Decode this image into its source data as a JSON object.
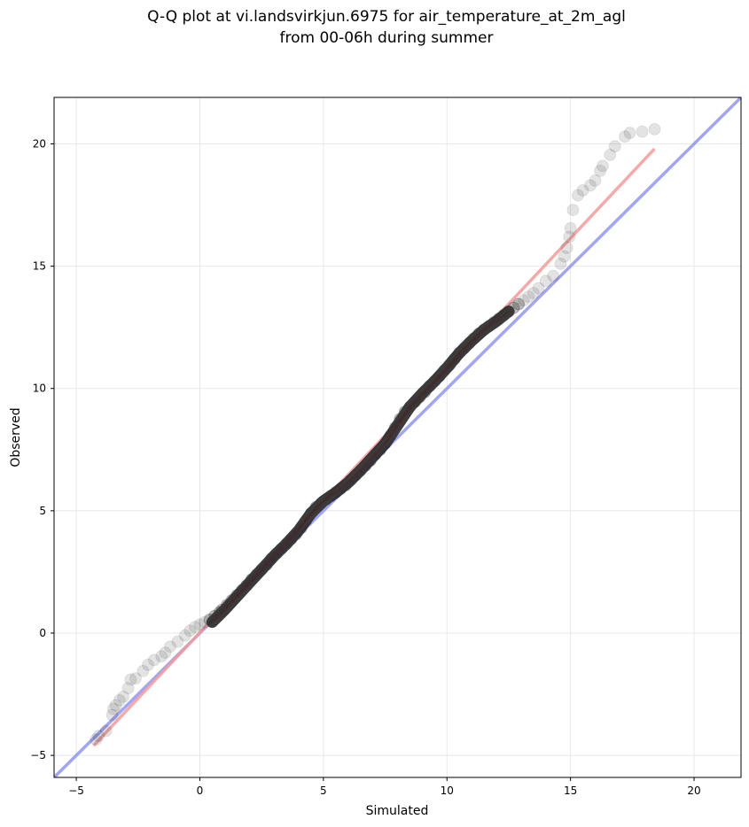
{
  "chart_data": {
    "type": "scatter",
    "title_line1": "Q-Q plot at vi.landsvirkjun.6975 for air_temperature_at_2m_agl",
    "title_line2": "from 00-06h during summer",
    "xlabel": "Simulated",
    "ylabel": "Observed",
    "xlim": [
      -5.9,
      21.9
    ],
    "ylim": [
      -5.9,
      21.9
    ],
    "xticks": [
      -5,
      0,
      5,
      10,
      15,
      20
    ],
    "yticks": [
      -5,
      0,
      5,
      10,
      15,
      20
    ],
    "grid": true,
    "colors": {
      "points": "#3a3a3a",
      "identity_line": "#8a8ff0",
      "fit_line": "#f39a9a",
      "grid": "#e8e8e8"
    },
    "identity_line": {
      "from": [
        -5.9,
        -5.9
      ],
      "to": [
        21.9,
        21.9
      ]
    },
    "fit_line": {
      "from": [
        -4.3,
        -4.6
      ],
      "to": [
        18.4,
        19.8
      ]
    },
    "bulk_quantiles": [
      [
        0.5,
        0.45
      ],
      [
        1.0,
        0.95
      ],
      [
        1.5,
        1.5
      ],
      [
        2.0,
        2.05
      ],
      [
        2.5,
        2.6
      ],
      [
        3.0,
        3.15
      ],
      [
        3.5,
        3.65
      ],
      [
        4.0,
        4.2
      ],
      [
        4.5,
        4.9
      ],
      [
        5.0,
        5.4
      ],
      [
        5.5,
        5.75
      ],
      [
        6.0,
        6.15
      ],
      [
        6.5,
        6.65
      ],
      [
        7.0,
        7.2
      ],
      [
        7.5,
        7.75
      ],
      [
        8.0,
        8.5
      ],
      [
        8.5,
        9.25
      ],
      [
        9.0,
        9.8
      ],
      [
        9.5,
        10.3
      ],
      [
        10.0,
        10.85
      ],
      [
        10.5,
        11.45
      ],
      [
        11.0,
        11.95
      ],
      [
        11.5,
        12.4
      ],
      [
        12.0,
        12.75
      ],
      [
        12.5,
        13.15
      ]
    ],
    "points": [
      [
        -4.2,
        -4.35
      ],
      [
        -4.1,
        -4.2
      ],
      [
        -3.8,
        -4.0
      ],
      [
        -3.55,
        -3.35
      ],
      [
        -3.5,
        -3.1
      ],
      [
        -3.4,
        -2.95
      ],
      [
        -3.25,
        -2.75
      ],
      [
        -3.1,
        -2.6
      ],
      [
        -2.9,
        -2.25
      ],
      [
        -2.8,
        -1.9
      ],
      [
        -2.6,
        -1.85
      ],
      [
        -2.3,
        -1.55
      ],
      [
        -2.1,
        -1.3
      ],
      [
        -1.85,
        -1.1
      ],
      [
        -1.55,
        -0.95
      ],
      [
        -1.4,
        -0.8
      ],
      [
        -1.2,
        -0.55
      ],
      [
        -0.9,
        -0.35
      ],
      [
        -0.6,
        -0.1
      ],
      [
        -0.4,
        0.1
      ],
      [
        -0.2,
        0.25
      ],
      [
        0.0,
        0.35
      ],
      [
        0.2,
        0.45
      ],
      [
        0.4,
        0.55
      ],
      [
        0.6,
        0.7
      ],
      [
        0.8,
        0.85
      ],
      [
        0.9,
        0.95
      ],
      [
        1.1,
        1.15
      ],
      [
        1.3,
        1.35
      ],
      [
        1.5,
        1.55
      ],
      [
        1.7,
        1.75
      ],
      [
        1.9,
        1.95
      ],
      [
        2.1,
        2.2
      ],
      [
        2.3,
        2.4
      ],
      [
        2.5,
        2.6
      ],
      [
        2.7,
        2.8
      ],
      [
        2.9,
        3.05
      ],
      [
        3.1,
        3.25
      ],
      [
        3.3,
        3.45
      ],
      [
        3.5,
        3.65
      ],
      [
        3.7,
        3.85
      ],
      [
        3.9,
        4.05
      ],
      [
        4.1,
        4.3
      ],
      [
        4.3,
        4.6
      ],
      [
        4.5,
        4.9
      ],
      [
        4.7,
        5.15
      ],
      [
        4.9,
        5.3
      ],
      [
        5.1,
        5.45
      ],
      [
        5.3,
        5.6
      ],
      [
        5.5,
        5.75
      ],
      [
        5.7,
        5.9
      ],
      [
        5.9,
        6.05
      ],
      [
        6.1,
        6.25
      ],
      [
        6.3,
        6.45
      ],
      [
        6.5,
        6.65
      ],
      [
        6.7,
        6.85
      ],
      [
        6.9,
        7.05
      ],
      [
        7.1,
        7.3
      ],
      [
        7.3,
        7.5
      ],
      [
        7.5,
        7.75
      ],
      [
        7.7,
        8.05
      ],
      [
        7.9,
        8.4
      ],
      [
        8.1,
        8.75
      ],
      [
        8.3,
        9.05
      ],
      [
        8.5,
        9.25
      ],
      [
        8.7,
        9.45
      ],
      [
        8.9,
        9.65
      ],
      [
        9.1,
        9.85
      ],
      [
        9.3,
        10.1
      ],
      [
        9.5,
        10.3
      ],
      [
        9.7,
        10.5
      ],
      [
        9.9,
        10.75
      ],
      [
        10.1,
        10.95
      ],
      [
        10.3,
        11.2
      ],
      [
        10.5,
        11.45
      ],
      [
        10.7,
        11.65
      ],
      [
        10.9,
        11.85
      ],
      [
        11.1,
        12.05
      ],
      [
        11.3,
        12.25
      ],
      [
        11.5,
        12.4
      ],
      [
        11.7,
        12.55
      ],
      [
        11.9,
        12.7
      ],
      [
        12.1,
        12.85
      ],
      [
        12.3,
        13.0
      ],
      [
        12.5,
        13.15
      ],
      [
        12.7,
        13.3
      ],
      [
        12.9,
        13.45
      ],
      [
        13.1,
        13.6
      ],
      [
        13.3,
        13.75
      ],
      [
        13.5,
        13.9
      ],
      [
        13.7,
        14.1
      ],
      [
        14.0,
        14.4
      ],
      [
        14.3,
        14.6
      ],
      [
        14.6,
        15.1
      ],
      [
        14.75,
        15.4
      ],
      [
        14.85,
        15.75
      ],
      [
        14.95,
        16.2
      ],
      [
        15.0,
        16.55
      ],
      [
        15.1,
        17.3
      ],
      [
        15.3,
        17.9
      ],
      [
        15.5,
        18.1
      ],
      [
        15.8,
        18.3
      ],
      [
        16.0,
        18.5
      ],
      [
        16.2,
        18.9
      ],
      [
        16.3,
        19.1
      ],
      [
        16.6,
        19.55
      ],
      [
        16.8,
        19.9
      ],
      [
        17.2,
        20.3
      ],
      [
        17.4,
        20.45
      ],
      [
        17.9,
        20.5
      ],
      [
        18.4,
        20.6
      ]
    ]
  }
}
